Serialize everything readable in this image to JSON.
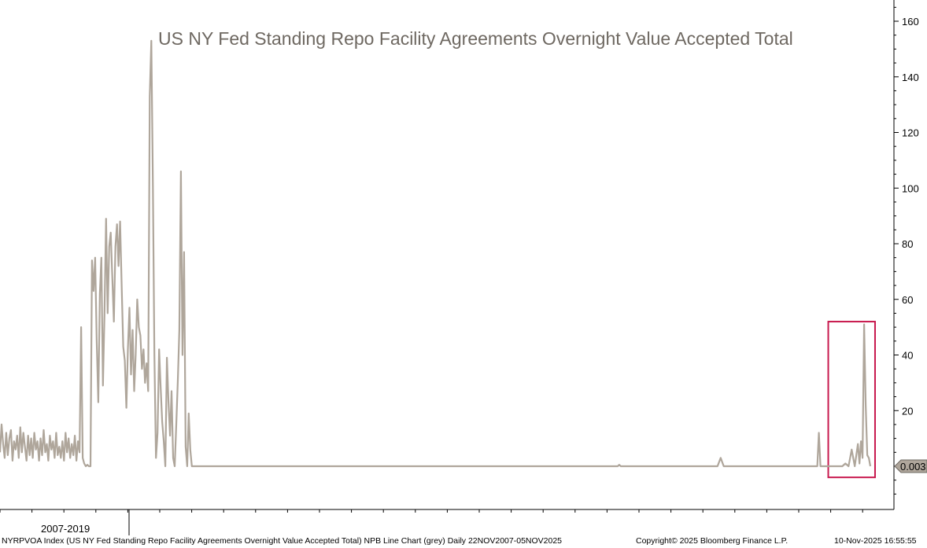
{
  "chart_data": {
    "type": "line",
    "title": "US NY Fed Standing Repo Facility Agreements Overnight Value Accepted Total",
    "xlabel": "",
    "ylabel": "",
    "period_label": "2007-2019",
    "ylim": [
      -17,
      168
    ],
    "y_ticks": [
      20,
      40,
      60,
      80,
      100,
      120,
      140,
      160
    ],
    "grid": false,
    "series": [
      {
        "color": "#afa69b",
        "points": [
          [
            0.0,
            5
          ],
          [
            0.5,
            15
          ],
          [
            1,
            8
          ],
          [
            1.5,
            3
          ],
          [
            2,
            12
          ],
          [
            2.5,
            4
          ],
          [
            3,
            10
          ],
          [
            3.5,
            13
          ],
          [
            4,
            2
          ],
          [
            4.5,
            9
          ],
          [
            5,
            6
          ],
          [
            5.5,
            11
          ],
          [
            6,
            3
          ],
          [
            6.5,
            14
          ],
          [
            7,
            5
          ],
          [
            7.5,
            12
          ],
          [
            8,
            7
          ],
          [
            8.5,
            2
          ],
          [
            9,
            11
          ],
          [
            9.5,
            4
          ],
          [
            10,
            10
          ],
          [
            10.5,
            3
          ],
          [
            11,
            12
          ],
          [
            11.5,
            6
          ],
          [
            12,
            9
          ],
          [
            12.5,
            2
          ],
          [
            13,
            10
          ],
          [
            13.5,
            4
          ],
          [
            14,
            13
          ],
          [
            14.5,
            5
          ],
          [
            15,
            8
          ],
          [
            15.5,
            2
          ],
          [
            16,
            11
          ],
          [
            16.5,
            6
          ],
          [
            17,
            9
          ],
          [
            17.5,
            3
          ],
          [
            18,
            12
          ],
          [
            18.5,
            4
          ],
          [
            19,
            7
          ],
          [
            19.5,
            3
          ],
          [
            20,
            9
          ],
          [
            20.5,
            2
          ],
          [
            21,
            12
          ],
          [
            21.5,
            5
          ],
          [
            22,
            10
          ],
          [
            22.5,
            3
          ],
          [
            23,
            8
          ],
          [
            23.5,
            4
          ],
          [
            24,
            11
          ],
          [
            24.5,
            2
          ],
          [
            25,
            9
          ],
          [
            25.5,
            5
          ],
          [
            26,
            50
          ],
          [
            26.5,
            3
          ],
          [
            27,
            1
          ],
          [
            27.5,
            0
          ],
          [
            28,
            0.5
          ],
          [
            28.5,
            0
          ],
          [
            29,
            0
          ],
          [
            29.5,
            74
          ],
          [
            30,
            63
          ],
          [
            30.5,
            75
          ],
          [
            31,
            45
          ],
          [
            31.5,
            23
          ],
          [
            32,
            62
          ],
          [
            32.5,
            75
          ],
          [
            33,
            29
          ],
          [
            33.5,
            55
          ],
          [
            34,
            89
          ],
          [
            34.5,
            55
          ],
          [
            35,
            79
          ],
          [
            35.5,
            84
          ],
          [
            36,
            68
          ],
          [
            36.5,
            52
          ],
          [
            37,
            79
          ],
          [
            37.5,
            87
          ],
          [
            38,
            72
          ],
          [
            38.5,
            88
          ],
          [
            39,
            65
          ],
          [
            39.5,
            43
          ],
          [
            40,
            38
          ],
          [
            40.5,
            21
          ],
          [
            41,
            42
          ],
          [
            41.5,
            57
          ],
          [
            42,
            33
          ],
          [
            42.5,
            49
          ],
          [
            43,
            27
          ],
          [
            43.5,
            40
          ],
          [
            44,
            60
          ],
          [
            44.5,
            50
          ],
          [
            45,
            47
          ],
          [
            45.5,
            35
          ],
          [
            46,
            42
          ],
          [
            46.5,
            30
          ],
          [
            47,
            37
          ],
          [
            47.5,
            27
          ],
          [
            48,
            133
          ],
          [
            48.5,
            153
          ],
          [
            49,
            101
          ],
          [
            49.5,
            40
          ],
          [
            50,
            3
          ],
          [
            50.5,
            12
          ],
          [
            51,
            42
          ],
          [
            51.5,
            28
          ],
          [
            52,
            16
          ],
          [
            52.5,
            9
          ],
          [
            53,
            0
          ],
          [
            53.5,
            39
          ],
          [
            54,
            23
          ],
          [
            54.5,
            11
          ],
          [
            55,
            27
          ],
          [
            55.5,
            3
          ],
          [
            56,
            0
          ],
          [
            56.5,
            15
          ],
          [
            57,
            31
          ],
          [
            57.5,
            49
          ],
          [
            58,
            106
          ],
          [
            58.5,
            40
          ],
          [
            59,
            77
          ],
          [
            59.5,
            7
          ],
          [
            60,
            0
          ],
          [
            60.5,
            19
          ],
          [
            61,
            6
          ],
          [
            61.5,
            0
          ],
          [
            62,
            0
          ],
          [
            64,
            0
          ],
          [
            100,
            0
          ],
          [
            150,
            0
          ],
          [
            198,
            0
          ],
          [
            198.5,
            0.5
          ],
          [
            199,
            0
          ],
          [
            230,
            0
          ],
          [
            231,
            3
          ],
          [
            232,
            0
          ],
          [
            240,
            0
          ],
          [
            260,
            0
          ],
          [
            262,
            0
          ],
          [
            262.5,
            12
          ],
          [
            263,
            0
          ],
          [
            270,
            0
          ],
          [
            271,
            1
          ],
          [
            272,
            0
          ],
          [
            273,
            6
          ],
          [
            274,
            0
          ],
          [
            275,
            8
          ],
          [
            275.5,
            1
          ],
          [
            276,
            9
          ],
          [
            276.5,
            3
          ],
          [
            277,
            51
          ],
          [
            277.5,
            22
          ],
          [
            278,
            4
          ],
          [
            278.5,
            3
          ],
          [
            279,
            0.003
          ]
        ]
      }
    ],
    "last_value_label": "0.003",
    "highlight_box": {
      "x_from": 265.5,
      "x_to": 280.5,
      "y_from": -4,
      "y_to": 52,
      "color": "#c8194e"
    }
  },
  "footer": {
    "description": "NYRPVOA Index (US NY Fed Standing Repo Facility Agreements Overnight Value Accepted Total) NPB Line Chart (grey) Daily 22NOV2007-05NOV2025",
    "copyright": "Copyright© 2025 Bloomberg Finance L.P.",
    "timestamp": "10-Nov-2025 16:55:55"
  }
}
